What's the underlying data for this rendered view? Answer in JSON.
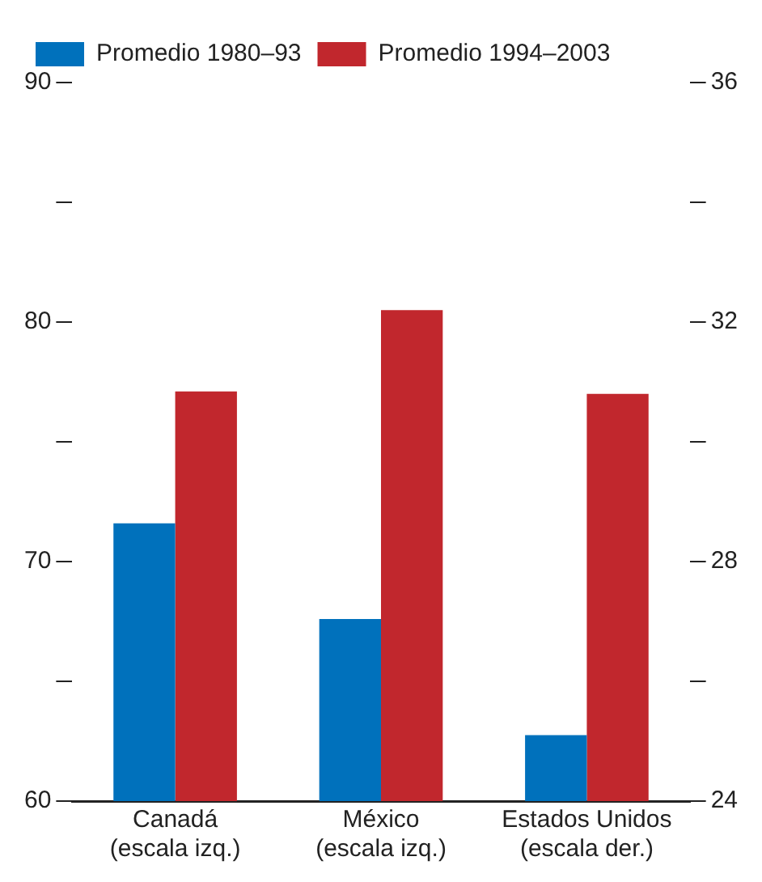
{
  "chart_data": {
    "type": "bar",
    "categories": [
      "Canadá\n(escala izq.)",
      "México\n(escala izq.)",
      "Estados Unidos\n(escala der.)"
    ],
    "series": [
      {
        "name": "Promedio 1980–93",
        "color": "#0071bc",
        "values": [
          71.6,
          67.6,
          null
        ]
      },
      {
        "name": "Promedio 1994–2003",
        "color": "#c1272d",
        "values": [
          77.1,
          80.5,
          null
        ]
      },
      {
        "color": "#0071bc",
        "axis": "y2",
        "values": [
          null,
          null,
          25.1
        ]
      },
      {
        "color": "#c1272d",
        "axis": "y2",
        "values": [
          null,
          null,
          30.8
        ]
      }
    ],
    "ylim": [
      60,
      90
    ],
    "yticks": [
      60,
      {
        "value": 65,
        "label": null
      },
      70,
      {
        "value": 75,
        "label": null
      },
      80,
      {
        "value": 85,
        "label": null
      },
      90
    ],
    "y2lim": [
      24,
      36
    ],
    "y2ticks": [
      24,
      {
        "value": 26,
        "label": null
      },
      28,
      {
        "value": 30,
        "label": null
      },
      32,
      {
        "value": 34,
        "label": null
      },
      36
    ],
    "grid": false,
    "legend": "top left"
  }
}
